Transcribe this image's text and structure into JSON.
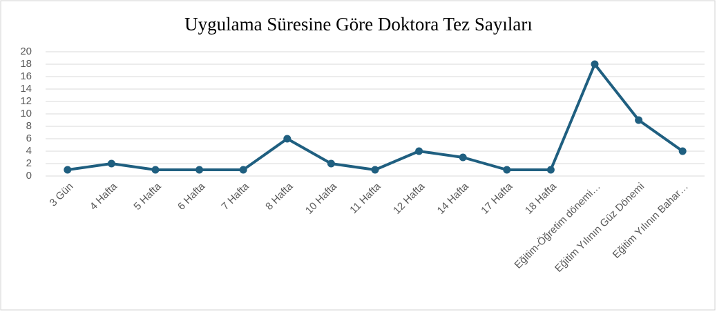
{
  "chart_data": {
    "type": "line",
    "title": "Uygulama Süresine Göre Doktora Tez Sayıları",
    "categories": [
      "3 Gün",
      "4 Hafta",
      "5 Hafta",
      "6 Hafta",
      "7 Hafta",
      "8 Hafta",
      "10 Hafta",
      "11 Hafta",
      "12 Hafta",
      "14 Hafta",
      "17 Hafta",
      "18 Hafta",
      "Eğitim-Öğretim dönemi…",
      "Eğitim Yılının Güz Dönemi",
      "Eğitim Yılının Bahar…"
    ],
    "values": [
      1,
      2,
      1,
      1,
      1,
      6,
      2,
      1,
      4,
      3,
      1,
      1,
      18,
      9,
      4
    ],
    "color": "#1f5f80",
    "ylim": [
      0,
      20
    ],
    "yticks": [
      0,
      2,
      4,
      6,
      8,
      10,
      12,
      14,
      16,
      18,
      20
    ],
    "grid": true
  }
}
